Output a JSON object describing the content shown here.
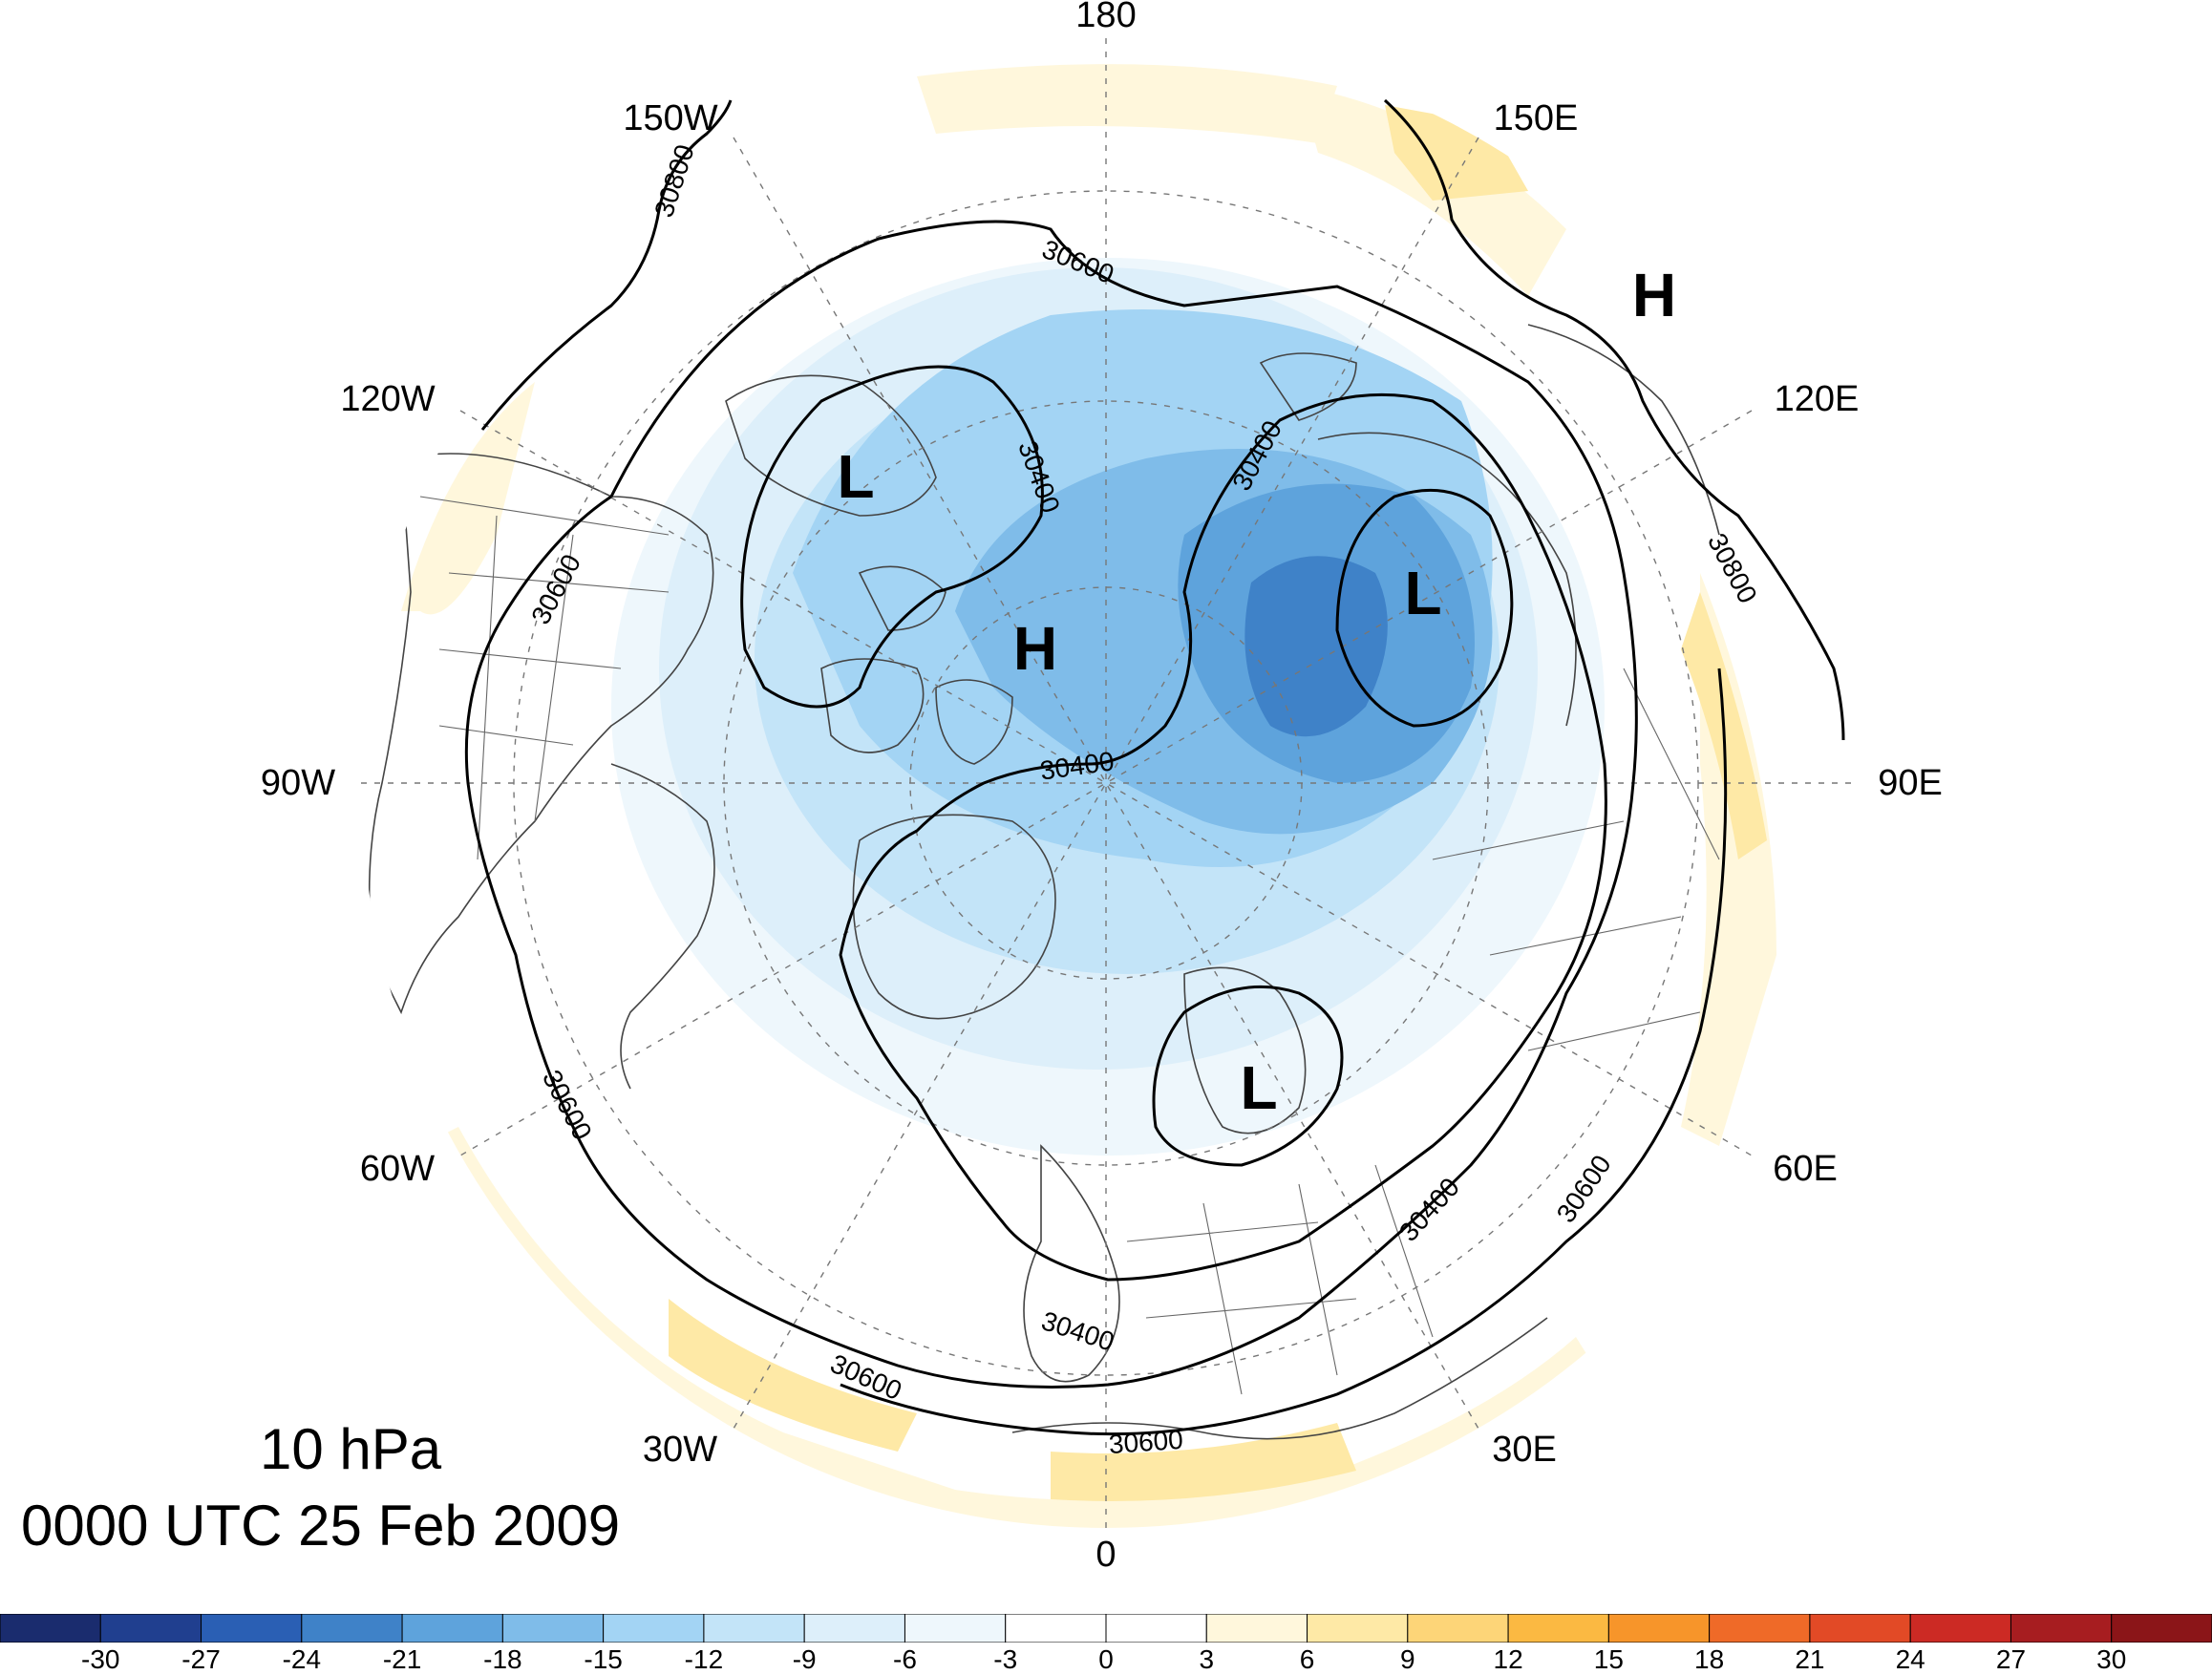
{
  "title": {
    "level": "10 hPa",
    "time": "0000 UTC 25 Feb 2009"
  },
  "longitude_labels": [
    "180",
    "150E",
    "120E",
    "90E",
    "60E",
    "30E",
    "0",
    "30W",
    "60W",
    "90W",
    "120W",
    "150W"
  ],
  "contours": [
    {
      "value": 30400,
      "label": "30400"
    },
    {
      "value": 30600,
      "label": "30600"
    },
    {
      "value": 30800,
      "label": "30800"
    }
  ],
  "pressure_centers": [
    {
      "type": "H",
      "region": "Canadian Arctic Archipelago"
    },
    {
      "type": "H",
      "region": "North Pacific / Kamchatka"
    },
    {
      "type": "L",
      "region": "Beaufort Sea / Alaska"
    },
    {
      "type": "L",
      "region": "Siberia"
    },
    {
      "type": "L",
      "region": "Scandinavia"
    }
  ],
  "colorbar": {
    "ticks": [
      "-30",
      "-27",
      "-24",
      "-21",
      "-18",
      "-15",
      "-12",
      "-9",
      "-6",
      "-3",
      "0",
      "3",
      "6",
      "9",
      "12",
      "15",
      "18",
      "21",
      "24",
      "27",
      "30"
    ],
    "colors": [
      "#1a2c6e",
      "#203f8f",
      "#2a5fb4",
      "#3f82c8",
      "#5ea3dc",
      "#7fbce9",
      "#a3d4f4",
      "#c3e4f8",
      "#ddeffa",
      "#eef7fc",
      "#ffffff",
      "#ffffff",
      "#fff7dc",
      "#fee9a6",
      "#fdd578",
      "#fbb942",
      "#f7952a",
      "#ef6a28",
      "#e24a26",
      "#cc2a24",
      "#a71d20",
      "#8b1518"
    ]
  }
}
